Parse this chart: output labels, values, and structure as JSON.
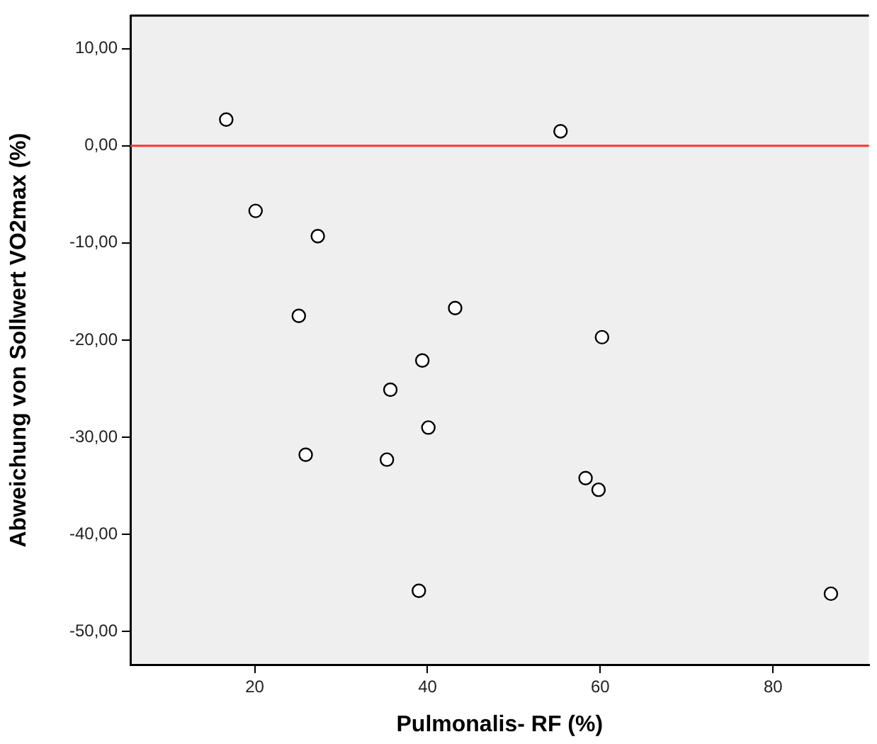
{
  "chart_data": {
    "type": "scatter",
    "xlabel": "Pulmonalis- RF (%)",
    "ylabel": "Abweichung von Sollwert VO2max (%)",
    "x": [
      16.7,
      55.4,
      20.1,
      27.3,
      25.1,
      43.2,
      60.2,
      39.4,
      35.7,
      40.1,
      25.9,
      35.3,
      58.3,
      59.8,
      39.0,
      86.7
    ],
    "series": [
      {
        "color": "#000000",
        "values": [
          2.7,
          1.5,
          -6.7,
          -9.3,
          -17.5,
          -16.7,
          -19.7,
          -22.1,
          -25.1,
          -29.0,
          -31.8,
          -32.3,
          -34.2,
          -35.4,
          -45.8,
          -46.1
        ]
      }
    ],
    "xlim": [
      5.6,
      91.1
    ],
    "xticks": [
      20,
      40,
      60,
      80
    ],
    "ylim": [
      -53.4,
      13.4
    ],
    "yticks": [
      {
        "value": 10,
        "label": "10,00"
      },
      {
        "value": 0,
        "label": "0,00"
      },
      {
        "value": -10,
        "label": "-10,00"
      },
      {
        "value": -20,
        "label": "-20,00"
      },
      {
        "value": -30,
        "label": "-30,00"
      },
      {
        "value": -40,
        "label": "-40,00"
      },
      {
        "value": -50,
        "label": "-50,00"
      }
    ],
    "ref_lines": [
      {
        "axis": "y",
        "value": 0,
        "color": "#ff3333"
      }
    ],
    "grid": false,
    "marker": "circle"
  }
}
